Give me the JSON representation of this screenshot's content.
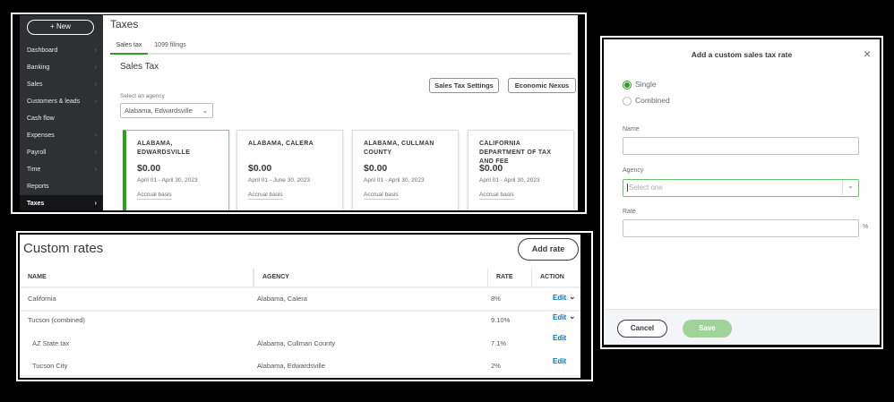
{
  "sidebar": {
    "new_label": "+ New",
    "items": [
      {
        "label": "Dashboard",
        "chevron": true
      },
      {
        "label": "Banking",
        "chevron": true
      },
      {
        "label": "Sales",
        "chevron": true
      },
      {
        "label": "Customers & leads",
        "chevron": true
      },
      {
        "label": "Cash flow",
        "chevron": false
      },
      {
        "label": "Expenses",
        "chevron": true
      },
      {
        "label": "Payroll",
        "chevron": true
      },
      {
        "label": "Time",
        "chevron": true
      },
      {
        "label": "Reports",
        "chevron": false
      },
      {
        "label": "Taxes",
        "chevron": true,
        "active": true
      }
    ]
  },
  "taxes": {
    "title": "Taxes",
    "tabs": [
      "Sales tax",
      "1099 filings"
    ],
    "section_title": "Sales Tax",
    "settings_button": "Sales Tax Settings",
    "nexus_button": "Economic Nexus",
    "agency_label": "Select an agency",
    "agency_value": "Alabama, Edwardsville",
    "cards": [
      {
        "name": "ALABAMA, EDWARDSVILLE",
        "amount": "$0.00",
        "period": "April 01 - April 30, 2023",
        "basis": "Accrual basis"
      },
      {
        "name": "ALABAMA, CALERA",
        "amount": "$0.00",
        "period": "April 01 - June 30, 2023",
        "basis": "Accrual basis"
      },
      {
        "name": "ALABAMA, CULLMAN COUNTY",
        "amount": "$0.00",
        "period": "April 01 - April 30, 2023",
        "basis": "Accrual basis"
      },
      {
        "name": "CALIFORNIA DEPARTMENT OF TAX AND FEE",
        "amount": "$0.00",
        "period": "April 01 - April 30, 2023",
        "basis": "Accrual basis"
      }
    ]
  },
  "custom_rates": {
    "title": "Custom rates",
    "add_button": "Add rate",
    "columns": [
      "NAME",
      "AGENCY",
      "RATE",
      "ACTION"
    ],
    "rows": [
      {
        "name": "California",
        "agency": "Alabama, Calera",
        "rate": "8%",
        "action": "Edit"
      },
      {
        "name": "Tucson (combined)",
        "agency": "",
        "rate": "9.10%",
        "action": "Edit"
      },
      {
        "name": "AZ State tax",
        "agency": "Alabama, Cullman County",
        "rate": "7.1%",
        "action": "Edit"
      },
      {
        "name": "Tucson City",
        "agency": "Alabama, Edwardsville",
        "rate": "2%",
        "action": "Edit"
      }
    ]
  },
  "dialog": {
    "title": "Add a custom sales tax rate",
    "close": "×",
    "options": [
      "Single",
      "Combined"
    ],
    "name_label": "Name",
    "agency_label": "Agency",
    "agency_placeholder": "Select one",
    "rate_label": "Rate",
    "rate_suffix": "%",
    "cancel": "Cancel",
    "save": "Save"
  },
  "colors": {
    "accent": "#2ca01c",
    "link": "#0077c5",
    "sidebar": "#2e3034"
  }
}
